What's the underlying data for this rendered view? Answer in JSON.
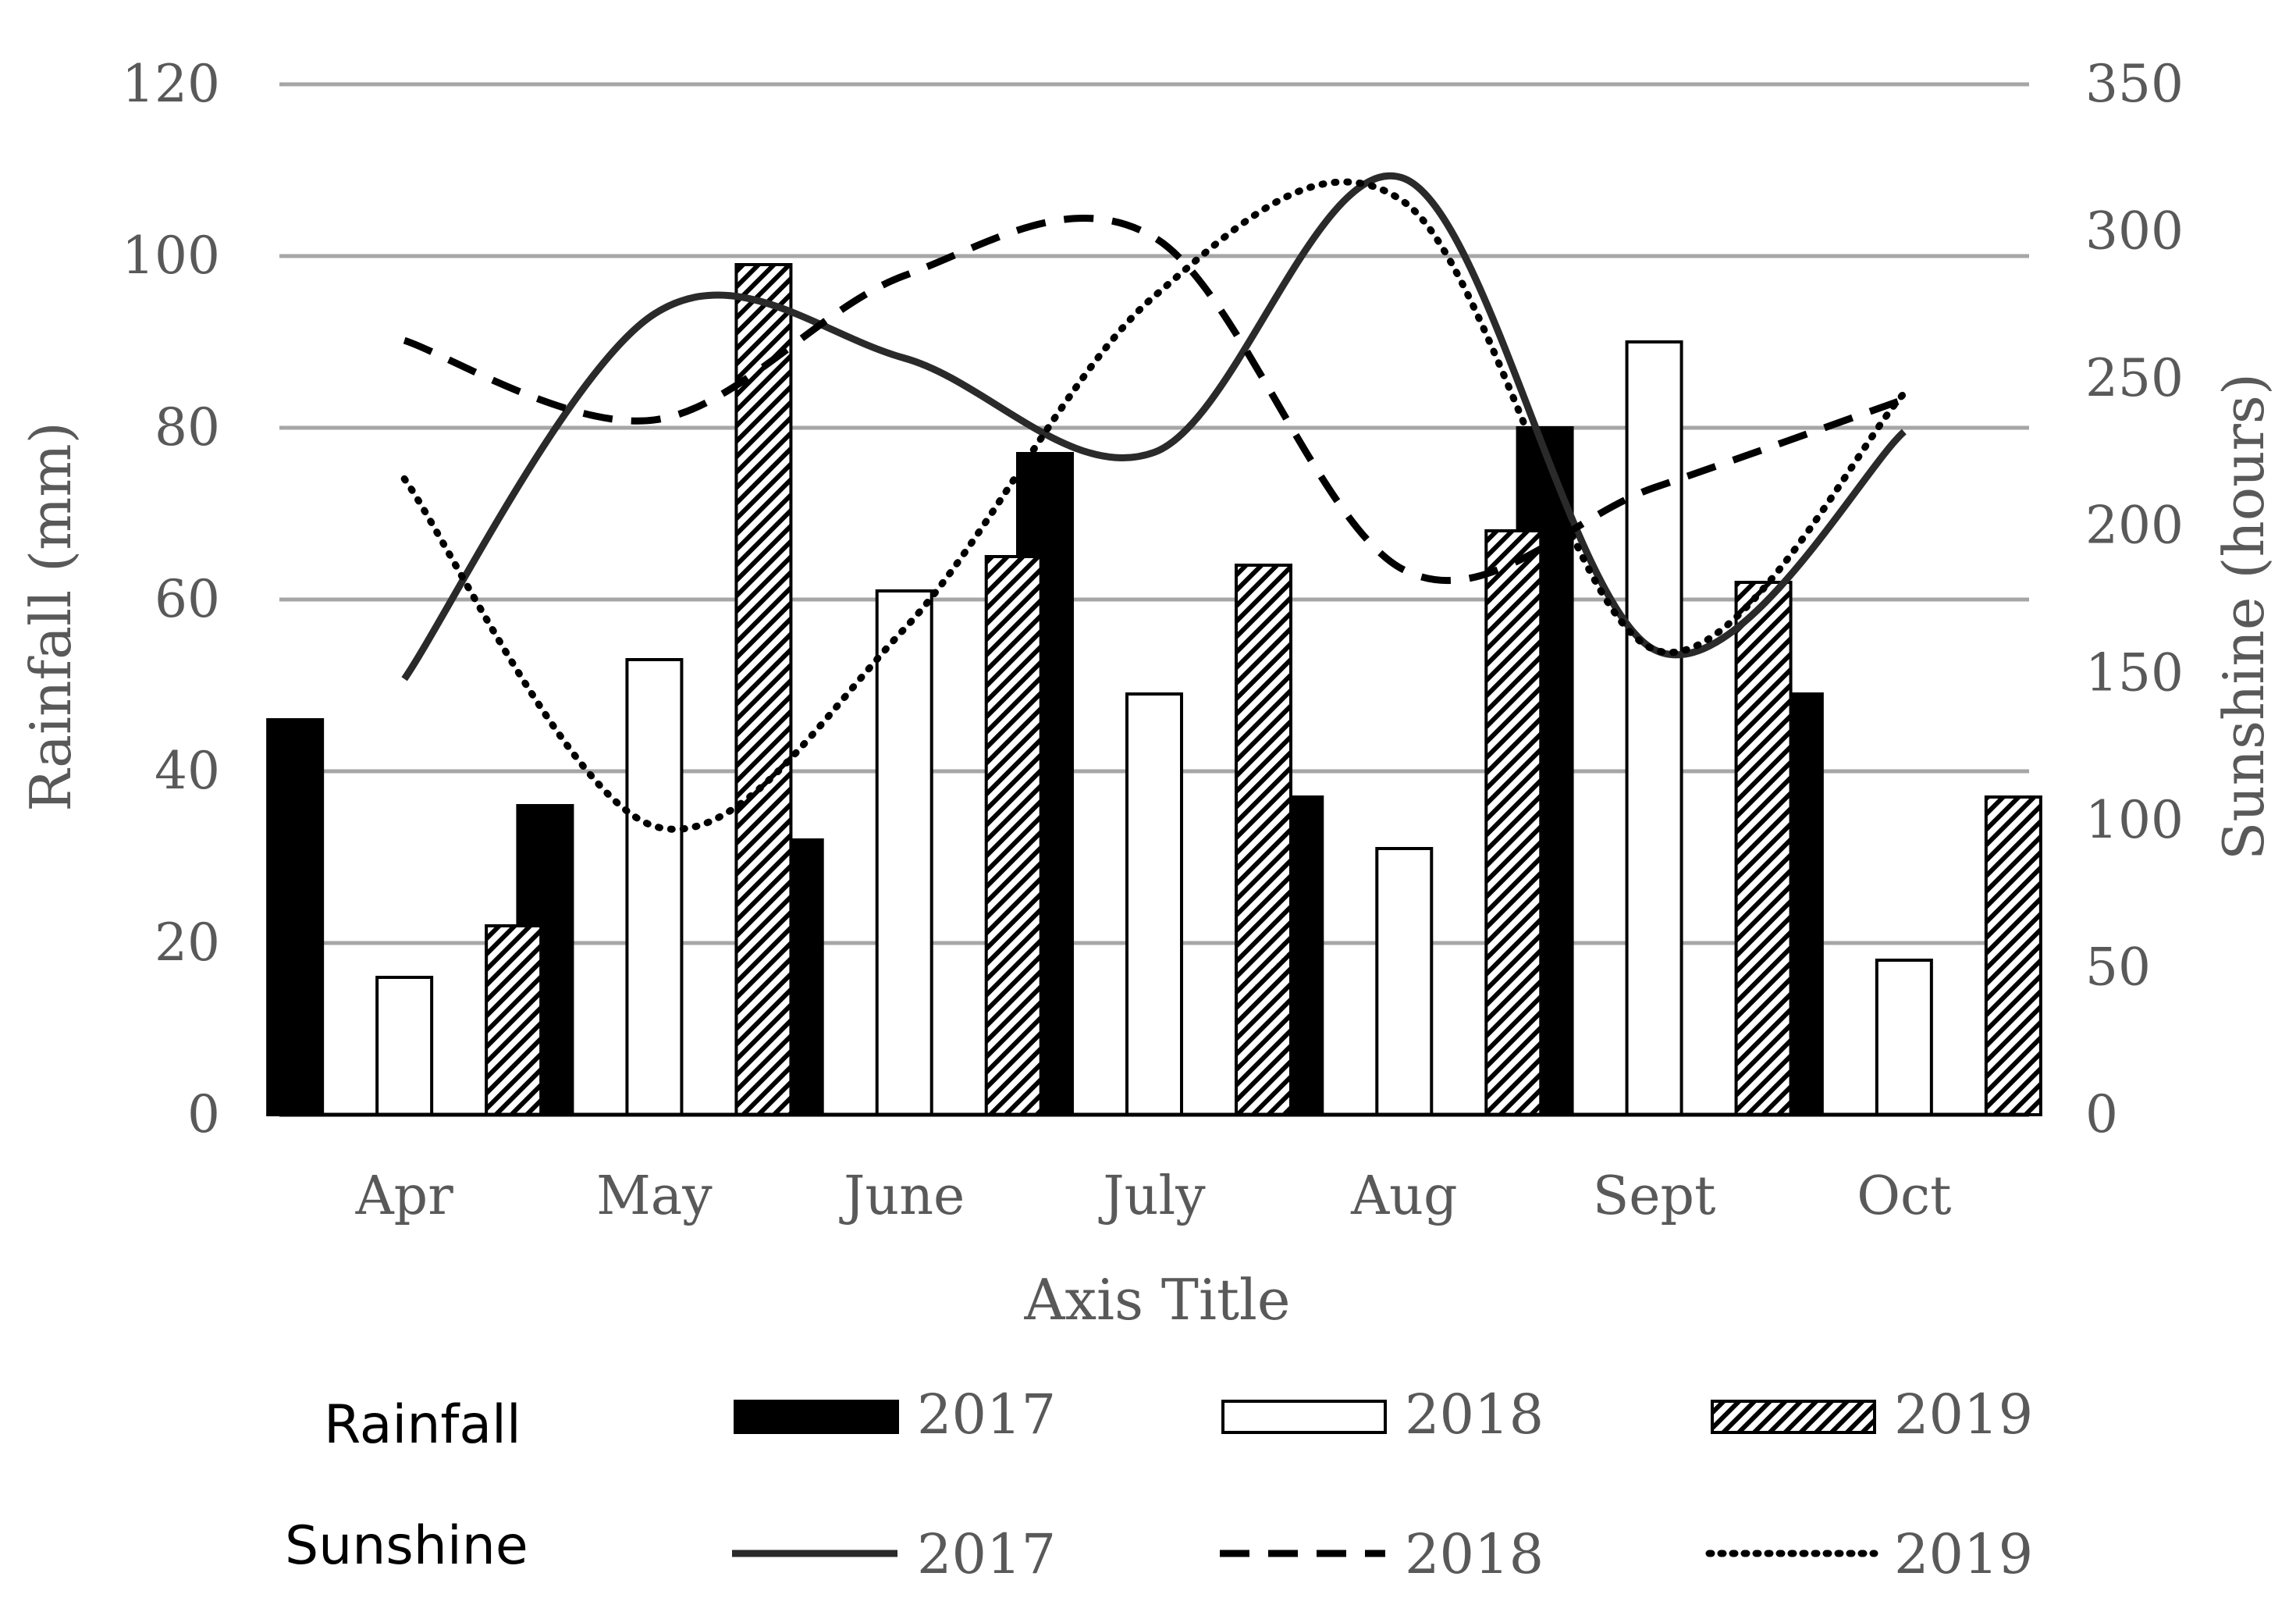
{
  "chart_data": {
    "type": "bar+line",
    "categories": [
      "Apr",
      "May",
      "June",
      "July",
      "Aug",
      "Sept",
      "Oct"
    ],
    "xlabel": "Axis Title",
    "ylabel": "Rainfall (mm)",
    "y2label": "Sunshine (hours)",
    "ylim": [
      0,
      120
    ],
    "y2lim": [
      0,
      350
    ],
    "yticks": [
      "0",
      "20",
      "40",
      "60",
      "80",
      "100",
      "120"
    ],
    "y2ticks": [
      "0",
      "50",
      "100",
      "150",
      "200",
      "250",
      "300",
      "350"
    ],
    "grid": true,
    "bar_series": [
      {
        "name": "2017",
        "fill": "solid",
        "values": [
          46,
          36,
          32,
          77,
          37,
          80,
          49
        ]
      },
      {
        "name": "2018",
        "fill": "white",
        "values": [
          16,
          53,
          61,
          49,
          31,
          90,
          18
        ]
      },
      {
        "name": "2019",
        "fill": "hatched",
        "values": [
          22,
          99,
          65,
          64,
          68,
          62,
          37
        ]
      }
    ],
    "line_series": [
      {
        "name": "2017",
        "style": "solid",
        "values": [
          148,
          272,
          257,
          225,
          318,
          158,
          232
        ]
      },
      {
        "name": "2018",
        "style": "dashed",
        "values": [
          263,
          236,
          285,
          298,
          185,
          213,
          243
        ]
      },
      {
        "name": "2019",
        "style": "dotted",
        "values": [
          216,
          98,
          165,
          278,
          310,
          158,
          245
        ]
      }
    ],
    "legend": {
      "bar_group_label": "Rainfall",
      "line_group_label": "Sunshine",
      "bar_items": [
        "2017",
        "2018",
        "2019"
      ],
      "line_items": [
        "2017",
        "2018",
        "2019"
      ]
    },
    "colors": {
      "bar_stroke": "#000000",
      "line": "#2a2a2a",
      "grid": "#a6a6a6",
      "axis_text": "#595959"
    }
  }
}
